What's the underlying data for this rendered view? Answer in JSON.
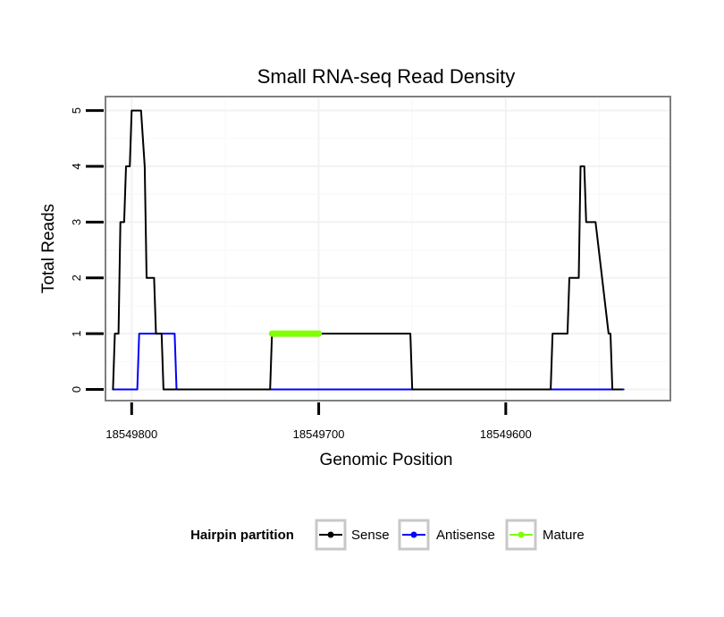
{
  "chart_data": {
    "type": "line",
    "title": "Small RNA-seq Read Density",
    "xlabel": "Genomic Position",
    "ylabel": "Total Reads",
    "x_reversed": true,
    "xlim": [
      18549814,
      18549512
    ],
    "ylim": [
      -0.2,
      5.25
    ],
    "x_ticks": [
      18549800,
      18549700,
      18549600
    ],
    "x_tick_labels": [
      "18549800",
      "18549700",
      "18549600"
    ],
    "y_ticks": [
      0,
      1,
      2,
      3,
      4,
      5
    ],
    "y_tick_labels": [
      "0",
      "1",
      "2",
      "3",
      "4",
      "5"
    ],
    "grid": true,
    "legend_position": "bottom",
    "legend_title": "Hairpin partition",
    "series": [
      {
        "name": "Sense",
        "color": "#000000",
        "x": [
          18549810,
          18549809,
          18549807,
          18549806,
          18549804,
          18549803,
          18549801,
          18549800,
          18549795,
          18549793,
          18549792,
          18549788,
          18549787,
          18549784,
          18549783,
          18549776,
          18549775,
          18549730,
          18549726,
          18549725,
          18549700,
          18549675,
          18549651,
          18549650,
          18549625,
          18549600,
          18549576,
          18549575,
          18549567,
          18549566,
          18549561,
          18549560,
          18549558,
          18549557,
          18549553,
          18549552,
          18549545,
          18549544,
          18549543,
          18549538
        ],
        "y": [
          0,
          1,
          1,
          3,
          3,
          4,
          4,
          5,
          5,
          4,
          2,
          2,
          1,
          1,
          0,
          0,
          0,
          0,
          0,
          1,
          1,
          1,
          1,
          0,
          0,
          0,
          0,
          1,
          1,
          2,
          2,
          4,
          4,
          3,
          3,
          3,
          1,
          1,
          0,
          0
        ]
      },
      {
        "name": "Antisense",
        "color": "#0000ff",
        "x": [
          18549810,
          18549797,
          18549796,
          18549777,
          18549776,
          18549537
        ],
        "y": [
          0,
          0,
          1,
          1,
          0,
          0
        ]
      },
      {
        "name": "Mature",
        "color": "#7fff00",
        "x": [
          18549725,
          18549700
        ],
        "y": [
          1,
          1
        ]
      }
    ]
  }
}
